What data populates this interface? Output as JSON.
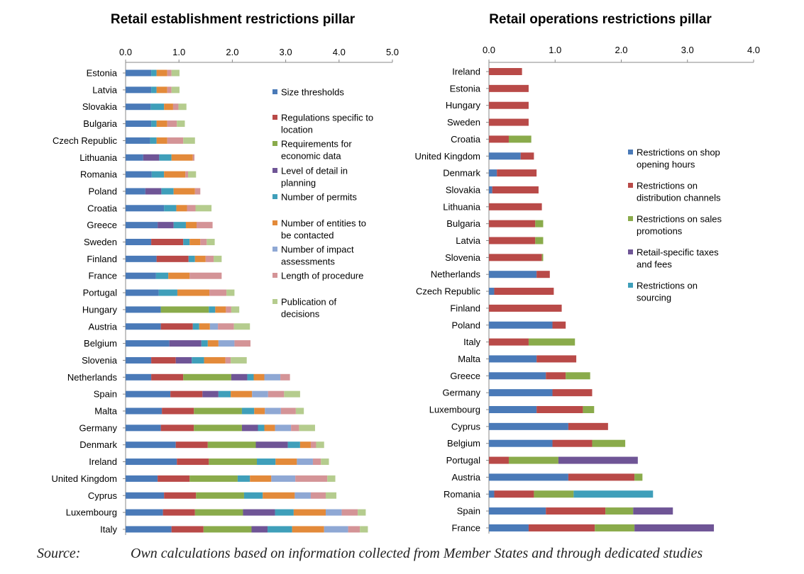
{
  "source": {
    "label": "Source:",
    "text": "Own calculations based on information collected from Member States and through dedicated studies"
  },
  "chart_data": [
    {
      "type": "bar",
      "orientation": "horizontal",
      "stacked": true,
      "title": "Retail establishment restrictions pillar",
      "xlim": [
        0,
        5
      ],
      "xticks": [
        "0.0",
        "1.0",
        "2.0",
        "3.0",
        "4.0",
        "5.0"
      ],
      "grid": false,
      "legend_position": "right",
      "categories": [
        "Estonia",
        "Latvia",
        "Slovakia",
        "Bulgaria",
        "Czech Republic",
        "Lithuania",
        "Romania",
        "Poland",
        "Croatia",
        "Greece",
        "Sweden",
        "Finland",
        "France",
        "Portugal",
        "Hungary",
        "Austria",
        "Belgium",
        "Slovenia",
        "Netherlands",
        "Spain",
        "Malta",
        "Germany",
        "Denmark",
        "Ireland",
        "United Kingdom",
        "Cyprus",
        "Luxembourg",
        "Italy"
      ],
      "series": [
        {
          "name": "Size thresholds",
          "color": "#4a7ab8",
          "values": [
            0.48,
            0.48,
            0.47,
            0.48,
            0.46,
            0.33,
            0.49,
            0.37,
            0.72,
            0.6,
            0.48,
            0.58,
            0.57,
            0.62,
            0.66,
            0.66,
            0.82,
            0.48,
            0.48,
            0.84,
            0.68,
            0.66,
            0.94,
            0.96,
            0.6,
            0.72,
            0.7,
            0.86
          ]
        },
        {
          "name": "Regulations specific to location",
          "color": "#b94a48",
          "values": [
            0,
            0,
            0,
            0,
            0,
            0,
            0,
            0,
            0,
            0,
            0.6,
            0.6,
            0,
            0,
            0,
            0.6,
            0,
            0.46,
            0.6,
            0.6,
            0.6,
            0.62,
            0.6,
            0.6,
            0.6,
            0.6,
            0.6,
            0.6
          ]
        },
        {
          "name": "Requirements for economic data",
          "color": "#8aab4b",
          "values": [
            0,
            0,
            0,
            0,
            0,
            0,
            0,
            0,
            0,
            0,
            0,
            0,
            0,
            0,
            0.9,
            0,
            0,
            0,
            0.9,
            0,
            0.9,
            0.9,
            0.9,
            0.9,
            0.9,
            0.9,
            0.9,
            0.9
          ]
        },
        {
          "name": "Level of detail in planning",
          "color": "#6f5596",
          "values": [
            0,
            0,
            0,
            0,
            0,
            0.3,
            0,
            0.3,
            0,
            0.3,
            0,
            0,
            0,
            0,
            0,
            0,
            0.6,
            0.3,
            0.3,
            0.3,
            0,
            0.3,
            0.6,
            0,
            0,
            0,
            0.6,
            0.3
          ]
        },
        {
          "name": "Number of permits",
          "color": "#3f9fba",
          "values": [
            0.1,
            0.1,
            0.25,
            0.1,
            0.12,
            0.23,
            0.23,
            0.23,
            0.23,
            0.23,
            0.12,
            0.12,
            0.23,
            0.35,
            0.12,
            0.12,
            0.12,
            0.23,
            0.12,
            0.23,
            0.23,
            0.12,
            0.23,
            0.35,
            0.23,
            0.35,
            0.35,
            0.46
          ]
        },
        {
          "name": "Number of entities to be contacted",
          "color": "#e38a3a",
          "values": [
            0.2,
            0.2,
            0.17,
            0.2,
            0.2,
            0.4,
            0.4,
            0.4,
            0.2,
            0.2,
            0.2,
            0.2,
            0.4,
            0.6,
            0.2,
            0.2,
            0.2,
            0.4,
            0.2,
            0.4,
            0.2,
            0.2,
            0.2,
            0.4,
            0.4,
            0.6,
            0.6,
            0.6
          ]
        },
        {
          "name": "Number of impact assessments",
          "color": "#8fa8d4",
          "values": [
            0,
            0,
            0,
            0,
            0,
            0,
            0,
            0,
            0,
            0,
            0,
            0,
            0,
            0,
            0,
            0.15,
            0.3,
            0,
            0.3,
            0.3,
            0.3,
            0.3,
            0,
            0.3,
            0.45,
            0.3,
            0.3,
            0.45
          ]
        },
        {
          "name": "Length of procedure",
          "color": "#d49497",
          "values": [
            0.08,
            0.08,
            0.1,
            0.18,
            0.3,
            0.03,
            0.05,
            0.1,
            0.16,
            0.3,
            0.12,
            0.15,
            0.6,
            0.32,
            0.1,
            0.3,
            0.3,
            0.1,
            0.18,
            0.3,
            0.28,
            0.15,
            0.1,
            0.15,
            0.6,
            0.28,
            0.3,
            0.22
          ]
        },
        {
          "name": "Publication of decisions",
          "color": "#b5cc8e",
          "values": [
            0.15,
            0.15,
            0.15,
            0.15,
            0.22,
            0,
            0.15,
            0,
            0.3,
            0,
            0.15,
            0.15,
            0,
            0.15,
            0.15,
            0.3,
            0,
            0.3,
            0,
            0.3,
            0.15,
            0.3,
            0.15,
            0.15,
            0.15,
            0.2,
            0.15,
            0.15
          ]
        }
      ]
    },
    {
      "type": "bar",
      "orientation": "horizontal",
      "stacked": true,
      "title": "Retail operations restrictions pillar",
      "xlim": [
        0,
        4
      ],
      "xticks": [
        "0.0",
        "1.0",
        "2.0",
        "3.0",
        "4.0"
      ],
      "grid": false,
      "legend_position": "right",
      "categories": [
        "Ireland",
        "Estonia",
        "Hungary",
        "Sweden",
        "Croatia",
        "United Kingdom",
        "Denmark",
        "Slovakia",
        "Lithuania",
        "Bulgaria",
        "Latvia",
        "Slovenia",
        "Netherlands",
        "Czech Republic",
        "Finland",
        "Poland",
        "Italy",
        "Malta",
        "Greece",
        "Germany",
        "Luxembourg",
        "Cyprus",
        "Belgium",
        "Portugal",
        "Austria",
        "Romania",
        "Spain",
        "France"
      ],
      "series": [
        {
          "name": "Restrictions on shop opening hours",
          "color": "#4a7ab8",
          "values": [
            0,
            0,
            0,
            0,
            0,
            0.48,
            0.12,
            0.05,
            0,
            0,
            0,
            0,
            0.72,
            0.08,
            0,
            0.96,
            0,
            0.72,
            0.86,
            0.96,
            0.72,
            1.2,
            0.96,
            0,
            1.2,
            0.08,
            0.86,
            0.6
          ]
        },
        {
          "name": "Restrictions on distribution channels",
          "color": "#b94a48",
          "values": [
            0.5,
            0.6,
            0.6,
            0.6,
            0.3,
            0.2,
            0.6,
            0.7,
            0.8,
            0.7,
            0.7,
            0.8,
            0.2,
            0.9,
            1.1,
            0.2,
            0.6,
            0.6,
            0.3,
            0.6,
            0.7,
            0.6,
            0.6,
            0.3,
            1.0,
            0.6,
            0.9,
            1.0
          ]
        },
        {
          "name": "Restrictions on sales promotions",
          "color": "#8aab4b",
          "values": [
            0,
            0,
            0,
            0,
            0.34,
            0,
            0,
            0,
            0,
            0.12,
            0.12,
            0.02,
            0,
            0,
            0,
            0,
            0.7,
            0,
            0.37,
            0,
            0.17,
            0,
            0.5,
            0.75,
            0.12,
            0.6,
            0.42,
            0.6
          ]
        },
        {
          "name": "Retail-specific taxes and fees",
          "color": "#6f5596",
          "values": [
            0,
            0,
            0,
            0,
            0,
            0,
            0,
            0,
            0,
            0,
            0,
            0,
            0,
            0,
            0,
            0,
            0,
            0,
            0,
            0,
            0,
            0,
            0,
            1.2,
            0,
            0,
            0.6,
            1.2
          ]
        },
        {
          "name": "Restrictions on sourcing",
          "color": "#3f9fba",
          "values": [
            0,
            0,
            0,
            0,
            0,
            0,
            0,
            0,
            0,
            0,
            0,
            0,
            0,
            0,
            0,
            0,
            0,
            0,
            0,
            0,
            0,
            0,
            0,
            0,
            0,
            1.2,
            0,
            0
          ]
        }
      ]
    }
  ]
}
